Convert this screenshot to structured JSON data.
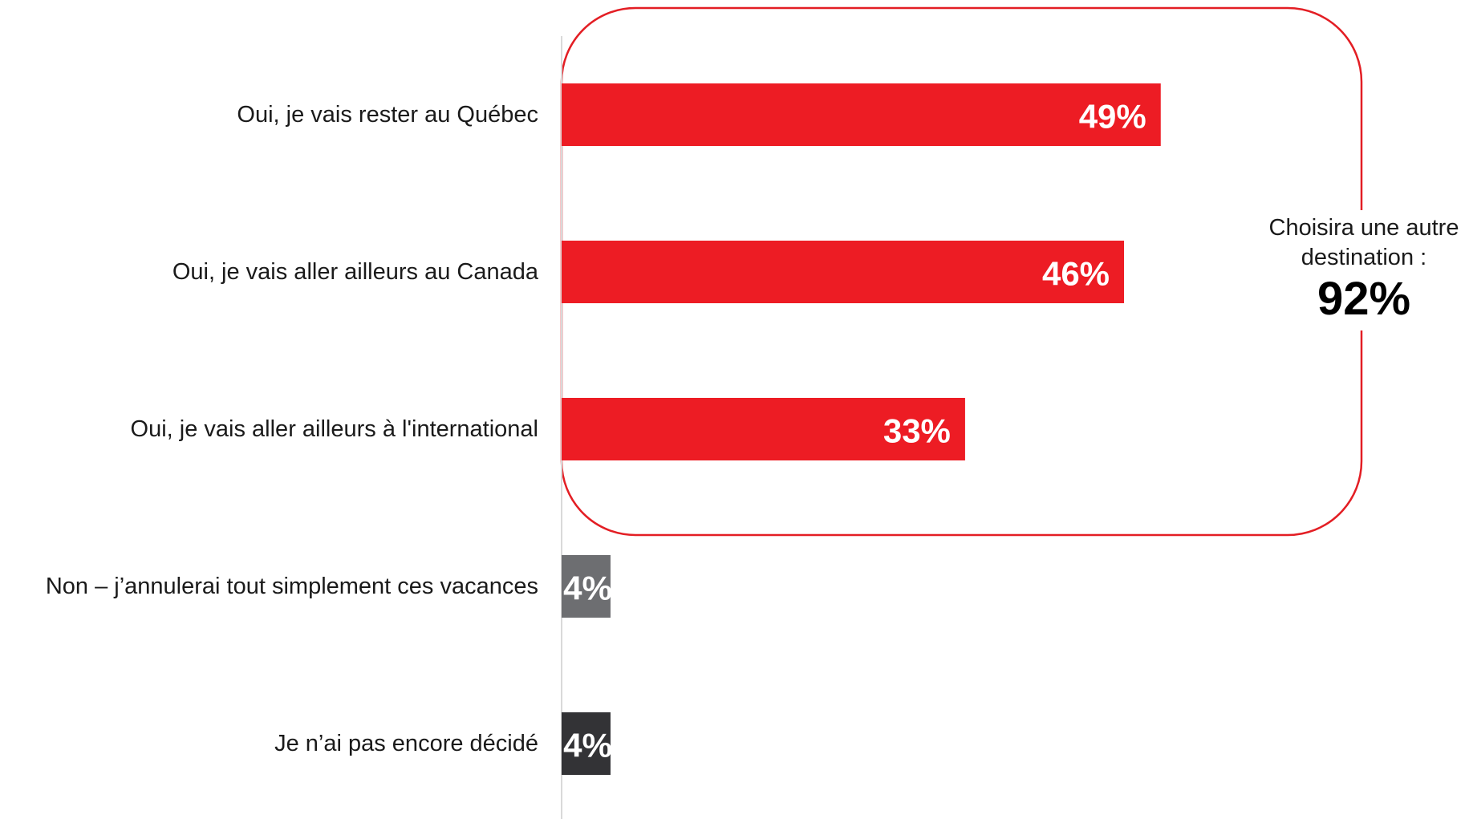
{
  "chart_data": {
    "type": "bar",
    "orientation": "horizontal",
    "categories": [
      "Oui, je vais rester au Québec",
      "Oui, je vais aller ailleurs au Canada",
      "Oui, je vais aller ailleurs à l'international",
      "Non – j’annulerai tout simplement ces vacances",
      "Je n’ai pas encore décidé"
    ],
    "values": [
      49,
      46,
      33,
      4,
      4
    ],
    "value_labels": [
      "49%",
      "46%",
      "33%",
      "4%",
      "4%"
    ],
    "bar_colors": [
      "#ed1c24",
      "#ed1c24",
      "#ed1c24",
      "#6d6e71",
      "#333336"
    ],
    "xlim": [
      0,
      100
    ],
    "grid": false,
    "legend": "none",
    "annotation": {
      "line1": "Choisira une autre",
      "line2": "destination :",
      "value": "92%",
      "box_color": "#e31e24",
      "groups_categories": [
        0,
        1,
        2
      ]
    }
  }
}
